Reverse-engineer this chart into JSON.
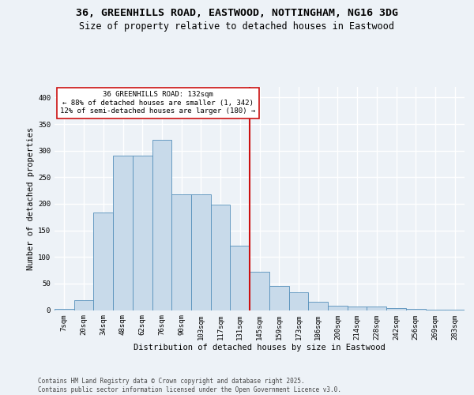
{
  "title_line1": "36, GREENHILLS ROAD, EASTWOOD, NOTTINGHAM, NG16 3DG",
  "title_line2": "Size of property relative to detached houses in Eastwood",
  "xlabel": "Distribution of detached houses by size in Eastwood",
  "ylabel": "Number of detached properties",
  "bar_labels": [
    "7sqm",
    "20sqm",
    "34sqm",
    "48sqm",
    "62sqm",
    "76sqm",
    "90sqm",
    "103sqm",
    "117sqm",
    "131sqm",
    "145sqm",
    "159sqm",
    "173sqm",
    "186sqm",
    "200sqm",
    "214sqm",
    "228sqm",
    "242sqm",
    "256sqm",
    "269sqm",
    "283sqm"
  ],
  "bar_values": [
    2,
    19,
    184,
    290,
    290,
    320,
    218,
    218,
    199,
    121,
    72,
    46,
    33,
    15,
    8,
    6,
    6,
    3,
    2,
    1,
    1
  ],
  "bar_color": "#c8daea",
  "bar_edge_color": "#5590bb",
  "ref_line_color": "#cc1111",
  "ref_bin_index": 9,
  "annotation_text": "36 GREENHILLS ROAD: 132sqm\n← 88% of detached houses are smaller (1, 342)\n12% of semi-detached houses are larger (180) →",
  "annotation_box_edgecolor": "#cc1111",
  "ylim": [
    0,
    420
  ],
  "yticks": [
    0,
    50,
    100,
    150,
    200,
    250,
    300,
    350,
    400
  ],
  "footer_line1": "Contains HM Land Registry data © Crown copyright and database right 2025.",
  "footer_line2": "Contains public sector information licensed under the Open Government Licence v3.0.",
  "bg_color": "#edf2f7",
  "grid_color": "#ffffff",
  "title1_fontsize": 9.5,
  "title2_fontsize": 8.5,
  "ylabel_fontsize": 7.5,
  "xlabel_fontsize": 7.5,
  "tick_fontsize": 6.5,
  "annotation_fontsize": 6.5,
  "footer_fontsize": 5.5
}
